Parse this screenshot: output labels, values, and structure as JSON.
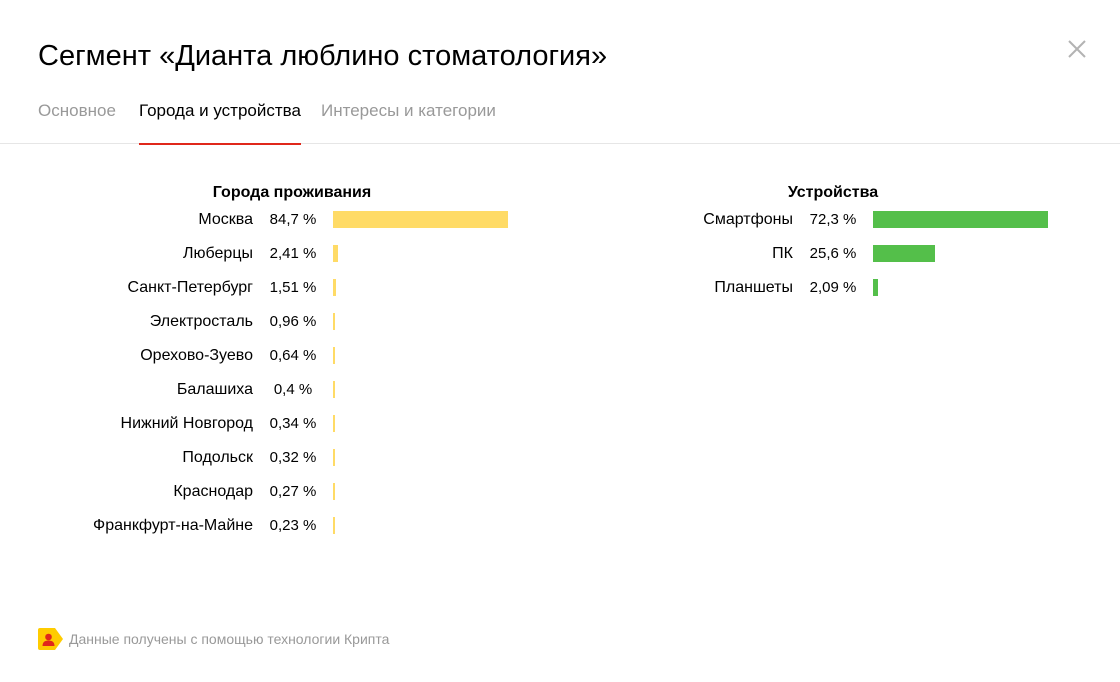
{
  "dialog": {
    "title": "Сегмент «Дианта люблино стоматология»",
    "tabs": [
      {
        "label": "Основное",
        "active": false
      },
      {
        "label": "Города и устройства",
        "active": true
      },
      {
        "label": "Интересы и категории",
        "active": false
      }
    ],
    "close_icon": "close-icon"
  },
  "cities": {
    "title": "Города проживания",
    "bar_color": "#ffdb66",
    "rows": [
      {
        "label": "Москва",
        "pct_text": "84,7 %",
        "share": 84.7
      },
      {
        "label": "Люберцы",
        "pct_text": "2,41 %",
        "share": 2.41
      },
      {
        "label": "Санкт-Петербург",
        "pct_text": "1,51 %",
        "share": 1.51
      },
      {
        "label": "Электросталь",
        "pct_text": "0,96 %",
        "share": 0.96
      },
      {
        "label": "Орехово-Зуево",
        "pct_text": "0,64 %",
        "share": 0.64
      },
      {
        "label": "Балашиха",
        "pct_text": "0,4 %",
        "share": 0.4
      },
      {
        "label": "Нижний Новгород",
        "pct_text": "0,34 %",
        "share": 0.34
      },
      {
        "label": "Подольск",
        "pct_text": "0,32 %",
        "share": 0.32
      },
      {
        "label": "Краснодар",
        "pct_text": "0,27 %",
        "share": 0.27
      },
      {
        "label": "Франкфурт-на-Майне",
        "pct_text": "0,23 %",
        "share": 0.23
      }
    ]
  },
  "devices": {
    "title": "Устройства",
    "bar_color": "#54bf4a",
    "rows": [
      {
        "label": "Смартфоны",
        "pct_text": "72,3 %",
        "share": 72.3
      },
      {
        "label": "ПК",
        "pct_text": "25,6 %",
        "share": 25.6
      },
      {
        "label": "Планшеты",
        "pct_text": "2,09 %",
        "share": 2.09
      }
    ]
  },
  "footer": {
    "logo_icon": "crypta-logo-icon",
    "text": "Данные получены с помощью технологии Крипта"
  },
  "colors": {
    "accent": "#e0281b",
    "muted_text": "#999999",
    "city_bar": "#ffdb66",
    "device_bar": "#54bf4a"
  }
}
